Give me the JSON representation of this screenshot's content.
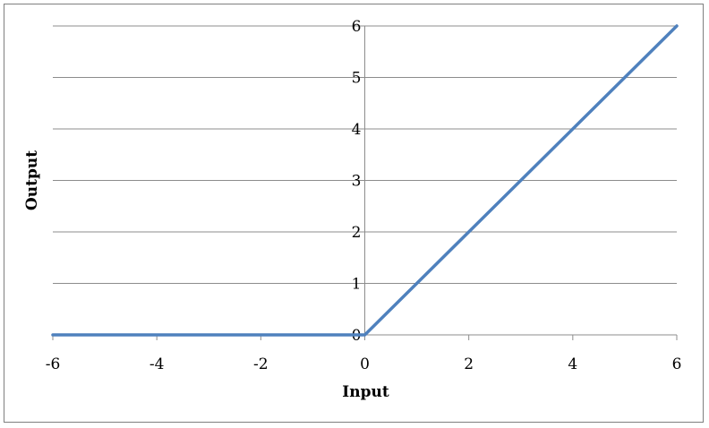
{
  "chart_data": {
    "type": "line",
    "title": "",
    "xlabel": "Input",
    "ylabel": "Output",
    "xlim": [
      -6,
      6
    ],
    "ylim": [
      0,
      6
    ],
    "x_ticks": [
      "-6",
      "-4",
      "-2",
      "0",
      "2",
      "4",
      "6"
    ],
    "y_ticks": [
      "0",
      "1",
      "2",
      "3",
      "4",
      "5",
      "6"
    ],
    "grid": "horizontal",
    "legend": "none",
    "series": [
      {
        "color": "#4f81bd",
        "x": [
          -6,
          -5,
          -4,
          -3,
          -2,
          -1,
          0,
          1,
          2,
          3,
          4,
          5,
          6
        ],
        "y": [
          0,
          0,
          0,
          0,
          0,
          0,
          0,
          1,
          2,
          3,
          4,
          5,
          6
        ]
      }
    ]
  }
}
